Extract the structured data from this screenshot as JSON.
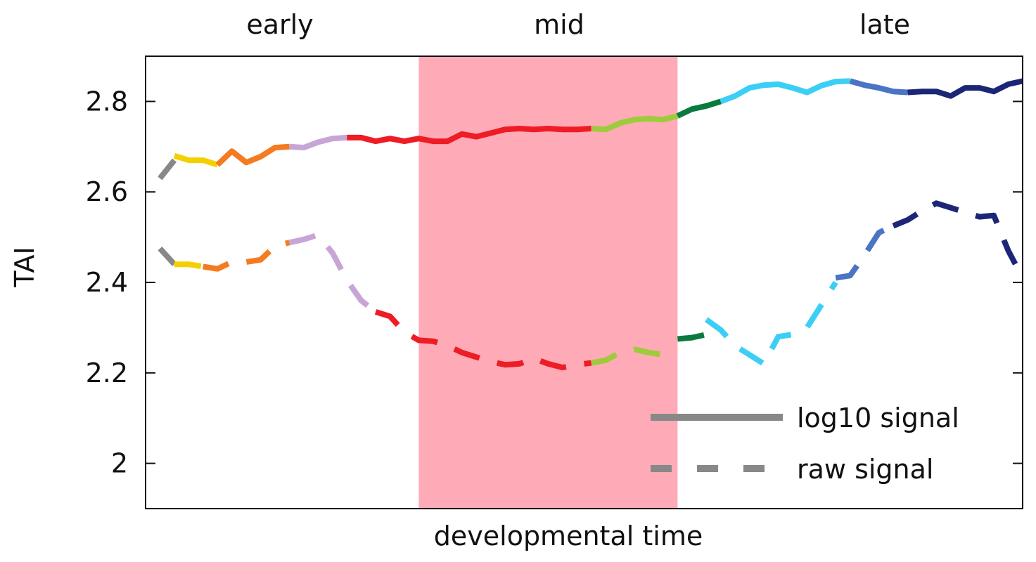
{
  "chart_data": {
    "type": "line",
    "title": "",
    "xlabel": "developmental time",
    "ylabel": "TAI",
    "ylim": [
      1.9,
      2.9
    ],
    "xlim": [
      0,
      61
    ],
    "yticks": [
      {
        "value": 2.0,
        "label": "2"
      },
      {
        "value": 2.2,
        "label": "2.2"
      },
      {
        "value": 2.4,
        "label": "2.4"
      },
      {
        "value": 2.6,
        "label": "2.6"
      },
      {
        "value": 2.8,
        "label": "2.8"
      }
    ],
    "grid": false,
    "legend_position": "bottom-right",
    "region_labels": [
      "early",
      "mid",
      "late"
    ],
    "highlight": {
      "label": "mid",
      "x_start": 19,
      "x_end": 37,
      "color": "#ffaab7"
    },
    "legend": [
      {
        "label": "log10 signal",
        "style": "solid",
        "color": "#888888"
      },
      {
        "label": "raw signal",
        "style": "dashed",
        "color": "#888888"
      }
    ],
    "series": [
      {
        "name": "log10 signal",
        "style": "solid",
        "segments": [
          {
            "color": "#888888",
            "x": [
              1,
              2
            ],
            "y": [
              2.63,
              2.67
            ]
          },
          {
            "color": "#f5d000",
            "x": [
              2,
              3,
              4,
              5
            ],
            "y": [
              2.68,
              2.67,
              2.67,
              2.66
            ]
          },
          {
            "color": "#f47b20",
            "x": [
              5,
              6,
              7,
              8,
              9,
              10
            ],
            "y": [
              2.66,
              2.69,
              2.665,
              2.678,
              2.698,
              2.7
            ]
          },
          {
            "color": "#c7a6d6",
            "x": [
              10,
              11,
              12,
              13,
              14
            ],
            "y": [
              2.7,
              2.698,
              2.71,
              2.718,
              2.72
            ]
          },
          {
            "color": "#ee1c25",
            "x": [
              14,
              15,
              16,
              17,
              18,
              19,
              20,
              21,
              22,
              23,
              24,
              25,
              26,
              27,
              28,
              29,
              30,
              31
            ],
            "y": [
              2.72,
              2.72,
              2.712,
              2.718,
              2.712,
              2.718,
              2.712,
              2.712,
              2.728,
              2.722,
              2.73,
              2.738,
              2.74,
              2.738,
              2.74,
              2.738,
              2.738,
              2.74
            ]
          },
          {
            "color": "#9ecb3c",
            "x": [
              31,
              32,
              33,
              34,
              35,
              36,
              37
            ],
            "y": [
              2.74,
              2.738,
              2.752,
              2.76,
              2.762,
              2.76,
              2.768
            ]
          },
          {
            "color": "#0a7a3e",
            "x": [
              37,
              38,
              39,
              40
            ],
            "y": [
              2.768,
              2.783,
              2.79,
              2.8
            ]
          },
          {
            "color": "#3ccff5",
            "x": [
              40,
              41,
              42,
              43,
              44,
              45,
              46,
              47,
              48,
              49
            ],
            "y": [
              2.8,
              2.812,
              2.83,
              2.836,
              2.838,
              2.83,
              2.82,
              2.835,
              2.844,
              2.845
            ]
          },
          {
            "color": "#4a74c4",
            "x": [
              49,
              50,
              51,
              52,
              53
            ],
            "y": [
              2.845,
              2.836,
              2.83,
              2.822,
              2.82
            ]
          },
          {
            "color": "#1c2677",
            "x": [
              53,
              54,
              55,
              56,
              57,
              58,
              59,
              60,
              61
            ],
            "y": [
              2.82,
              2.822,
              2.822,
              2.812,
              2.83,
              2.83,
              2.822,
              2.838,
              2.845
            ]
          }
        ]
      },
      {
        "name": "raw signal",
        "style": "dashed",
        "segments": [
          {
            "color": "#888888",
            "x": [
              1,
              2
            ],
            "y": [
              2.475,
              2.44
            ]
          },
          {
            "color": "#f5d000",
            "x": [
              2,
              3,
              4
            ],
            "y": [
              2.44,
              2.44,
              2.435
            ]
          },
          {
            "color": "#f47b20",
            "x": [
              4,
              5,
              6,
              7,
              8,
              9,
              10
            ],
            "y": [
              2.435,
              2.43,
              2.445,
              2.445,
              2.45,
              2.48,
              2.488
            ]
          },
          {
            "color": "#c7a6d6",
            "x": [
              10,
              11,
              12,
              13,
              14,
              15,
              16
            ],
            "y": [
              2.488,
              2.495,
              2.505,
              2.465,
              2.405,
              2.36,
              2.335
            ]
          },
          {
            "color": "#ee1c25",
            "x": [
              16,
              17,
              18,
              19,
              20,
              21,
              22,
              23,
              24,
              25,
              26,
              27,
              28,
              29,
              30,
              31
            ],
            "y": [
              2.335,
              2.325,
              2.29,
              2.272,
              2.27,
              2.26,
              2.245,
              2.235,
              2.225,
              2.218,
              2.22,
              2.232,
              2.22,
              2.212,
              2.218,
              2.222
            ]
          },
          {
            "color": "#9ecb3c",
            "x": [
              31,
              32,
              33,
              34,
              35,
              36,
              37
            ],
            "y": [
              2.222,
              2.228,
              2.245,
              2.252,
              2.245,
              2.24,
              2.25
            ]
          },
          {
            "color": "#0a7a3e",
            "x": [
              37,
              38,
              39
            ],
            "y": [
              2.275,
              2.278,
              2.285
            ]
          },
          {
            "color": "#3ccff5",
            "x": [
              39,
              40,
              41,
              42,
              43,
              44,
              45,
              46,
              47,
              48
            ],
            "y": [
              2.318,
              2.295,
              2.26,
              2.24,
              2.22,
              2.28,
              2.285,
              2.3,
              2.35,
              2.4
            ]
          },
          {
            "color": "#4a74c4",
            "x": [
              48,
              49,
              50,
              51,
              52
            ],
            "y": [
              2.41,
              2.415,
              2.46,
              2.51,
              2.525
            ]
          },
          {
            "color": "#1c2677",
            "x": [
              52,
              53,
              54,
              55,
              56,
              57,
              58,
              59,
              60,
              61
            ],
            "y": [
              2.525,
              2.538,
              2.558,
              2.575,
              2.565,
              2.555,
              2.545,
              2.548,
              2.47,
              2.41
            ]
          }
        ]
      }
    ]
  }
}
